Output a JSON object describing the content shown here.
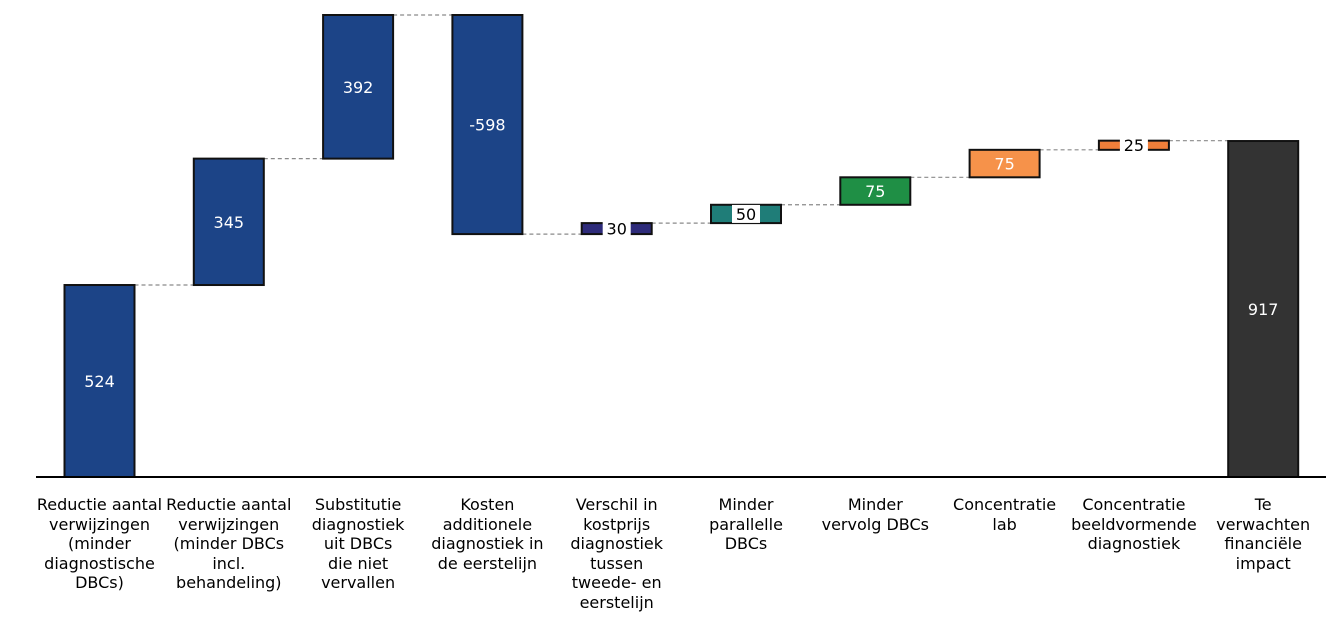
{
  "chart_data": {
    "type": "waterfall",
    "title": "",
    "xlabel": "",
    "ylabel": "",
    "grid": false,
    "categories": [
      "Reductie aantal\nverwijzingen\n(minder\ndiagnostische\nDBCs)",
      "Reductie aantal\nverwijzingen\n(minder DBCs\nincl.\nbehandeling)",
      "Substitutie\ndiagnostiek\nuit DBCs\ndie niet\nvervallen",
      "Kosten\nadditionele\ndiagnostiek in\nde eerstelijn",
      "Verschil in\nkostprijs\ndiagnostiek\ntussen\ntweede- en\neerstelijn",
      "Minder\nparallelle\nDBCs",
      "Minder\nvervolg DBCs",
      "Concentratie\nlab",
      "Concentratie\nbeeldvormende\ndiagnostiek",
      "Te\nverwachten\nfinanciële\nimpact"
    ],
    "values": [
      524,
      345,
      392,
      -598,
      30,
      50,
      75,
      75,
      25,
      917
    ],
    "labels": [
      "524",
      "345",
      "392",
      "-598",
      "30",
      "50",
      "75",
      "75",
      "25",
      "917"
    ],
    "is_total": [
      false,
      false,
      false,
      false,
      false,
      false,
      false,
      false,
      false,
      true
    ],
    "colors": [
      "#1c4487",
      "#1c4487",
      "#1c4487",
      "#1c4487",
      "#2e2b7a",
      "#1f7d78",
      "#1f8f45",
      "#f6924a",
      "#f07f3a",
      "#333333"
    ],
    "ylim": [
      0,
      1261
    ]
  }
}
